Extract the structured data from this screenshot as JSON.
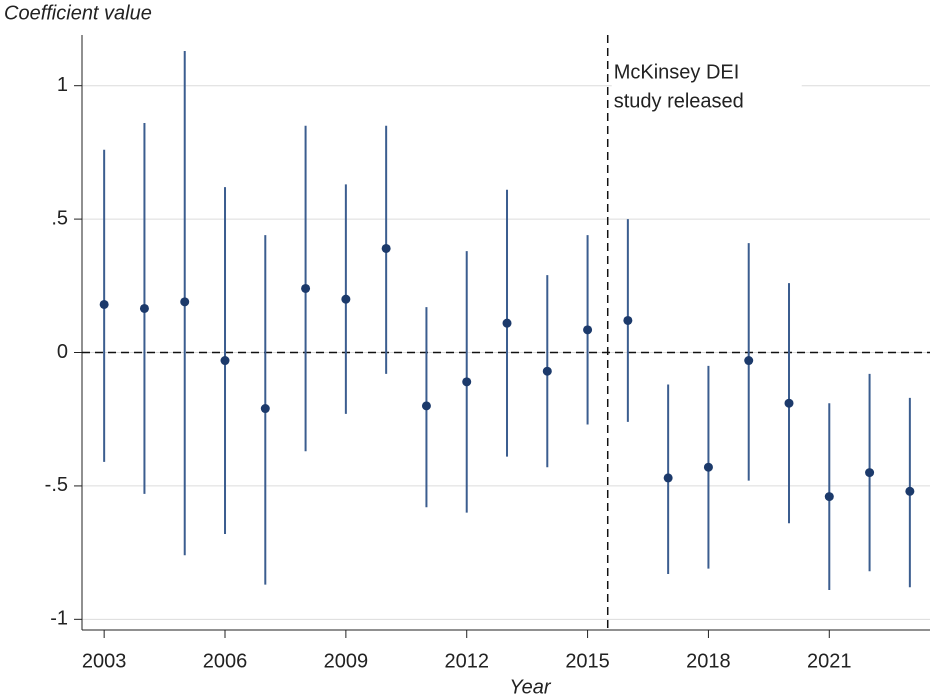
{
  "chart_data": {
    "type": "errorbar",
    "y_label": "Coefficient value",
    "x_label": "Year",
    "x": [
      2003,
      2004,
      2005,
      2006,
      2007,
      2008,
      2009,
      2010,
      2011,
      2012,
      2013,
      2014,
      2015,
      2016,
      2017,
      2018,
      2019,
      2020,
      2021,
      2022,
      2023
    ],
    "series": [
      {
        "color": "#1c3a6b",
        "values": [
          0.18,
          0.165,
          0.19,
          -0.03,
          -0.21,
          0.24,
          0.2,
          0.39,
          -0.2,
          -0.11,
          0.11,
          -0.07,
          0.085,
          0.12,
          -0.47,
          -0.43,
          -0.03,
          -0.19,
          -0.54,
          -0.45,
          -0.52
        ],
        "lower": [
          -0.41,
          -0.53,
          -0.76,
          -0.68,
          -0.87,
          -0.37,
          -0.23,
          -0.08,
          -0.58,
          -0.6,
          -0.39,
          -0.43,
          -0.27,
          -0.26,
          -0.83,
          -0.81,
          -0.48,
          -0.64,
          -0.89,
          -0.82,
          -0.88
        ],
        "upper": [
          0.76,
          0.86,
          1.13,
          0.62,
          0.44,
          0.85,
          0.63,
          0.85,
          0.17,
          0.38,
          0.61,
          0.29,
          0.44,
          0.5,
          -0.12,
          -0.05,
          0.41,
          0.26,
          -0.19,
          -0.08,
          -0.17
        ]
      }
    ],
    "xlim": [
      2002.45,
      2023.5
    ],
    "ylim": [
      -1.04,
      1.19
    ],
    "xticks": [
      2003,
      2006,
      2009,
      2012,
      2015,
      2018,
      2021
    ],
    "yticks": [
      -1,
      {
        "value": -0.5,
        "label": "-.5"
      },
      0,
      {
        "value": 0.5,
        "label": ".5"
      },
      1
    ],
    "grid": true,
    "hline": 0,
    "vline": 2015.5,
    "annotation": [
      "McKinsey DEI",
      "study released"
    ]
  }
}
